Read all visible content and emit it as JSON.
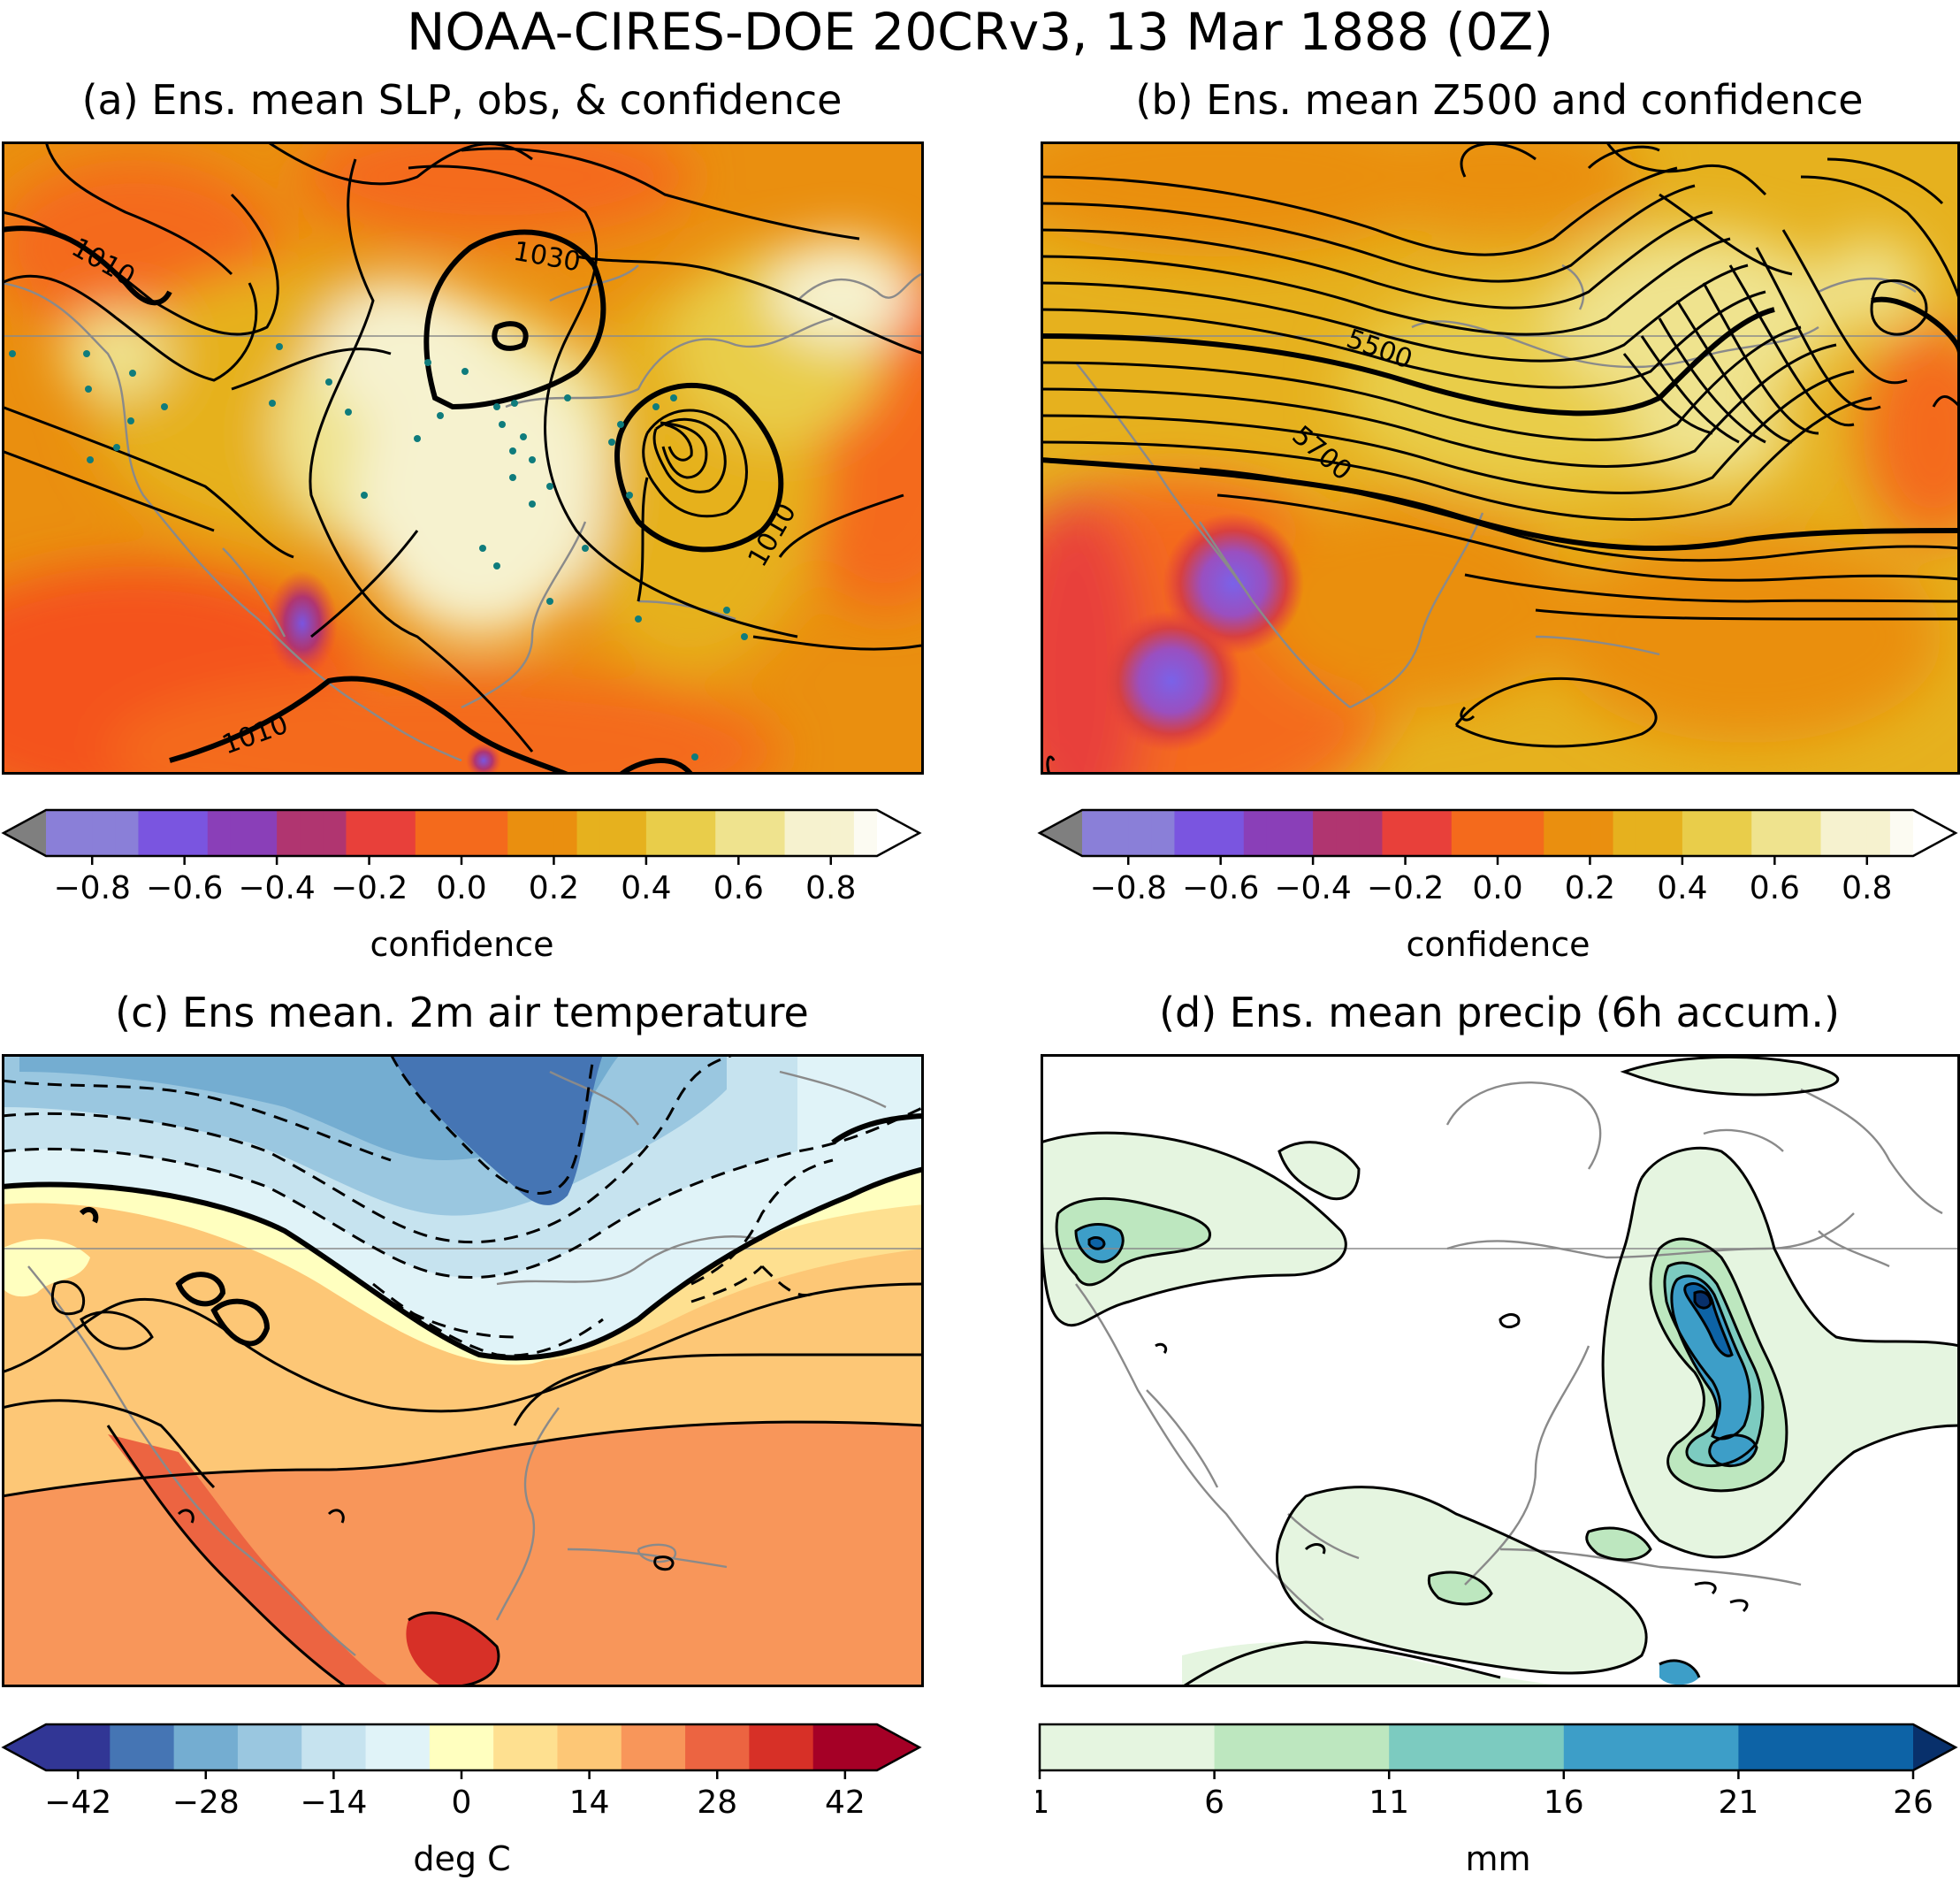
{
  "figure": {
    "title": "NOAA-CIRES-DOE 20CRv3, 13 Mar 1888 (0Z)"
  },
  "panels": [
    {
      "id": "a",
      "title": "(a) Ens. mean SLP, obs, & confidence",
      "contour_labels": [
        "1010",
        "1030",
        "1010",
        "1010"
      ],
      "colorbar": {
        "label": "confidence",
        "ticks": [
          "−0.8",
          "−0.6",
          "−0.4",
          "−0.2",
          "0.0",
          "0.2",
          "0.4",
          "0.6",
          "0.8"
        ]
      }
    },
    {
      "id": "b",
      "title": "(b) Ens. mean Z500 and confidence",
      "contour_labels": [
        "5500",
        "5700"
      ],
      "colorbar": {
        "label": "confidence",
        "ticks": [
          "−0.8",
          "−0.6",
          "−0.4",
          "−0.2",
          "0.0",
          "0.2",
          "0.4",
          "0.6",
          "0.8"
        ]
      }
    },
    {
      "id": "c",
      "title": "(c) Ens mean. 2m air temperature",
      "colorbar": {
        "label": "deg C",
        "ticks": [
          "−42",
          "−28",
          "−14",
          "0",
          "14",
          "28",
          "42"
        ]
      }
    },
    {
      "id": "d",
      "title": "(d) Ens. mean precip (6h accum.)",
      "colorbar": {
        "label": "mm",
        "ticks": [
          "1",
          "6",
          "11",
          "16",
          "21",
          "26"
        ]
      }
    }
  ],
  "colors": {
    "confidence_scale": [
      "#7f7f7f",
      "#8a7fd8",
      "#7a55e0",
      "#8a3fb8",
      "#b03570",
      "#e8403a",
      "#f46a1c",
      "#ea8f0f",
      "#e6b11e",
      "#e9cd4a",
      "#efe38e",
      "#f6f2cf",
      "#fcfbf2"
    ],
    "temperature_scale": [
      "#313695",
      "#4575b4",
      "#74add1",
      "#9ac7e0",
      "#c6e3ef",
      "#e0f3f8",
      "#ffffbf",
      "#fee090",
      "#fdc776",
      "#f8965a",
      "#ec6441",
      "#d73027",
      "#a50026"
    ],
    "precip_scale": [
      "#e5f5e0",
      "#bde7bf",
      "#7ccbc0",
      "#3d9ec8",
      "#0d63a6",
      "#08306b"
    ]
  }
}
